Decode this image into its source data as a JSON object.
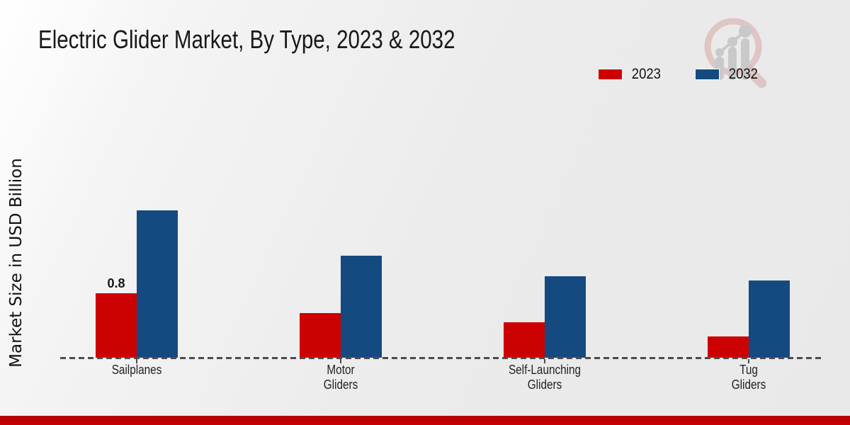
{
  "header": {
    "title": "Electric Glider Market, By Type, 2023 & 2032"
  },
  "icons": {
    "logo": "magnifier-growth-chart-icon"
  },
  "colors": {
    "series_2023": "#cc0202",
    "series_2032": "#154a80",
    "footer_band": "#c00000",
    "axis_dash": "#4c4c4c"
  },
  "chart_data": {
    "type": "bar",
    "title": "Electric Glider Market, By Type, 2023 & 2032",
    "xlabel": "",
    "ylabel": "Market Size in USD Billion",
    "categories": [
      "Sailplanes",
      "Motor Gliders",
      "Self-Launching Gliders",
      "Tug Gliders"
    ],
    "category_lines": [
      [
        "Sailplanes"
      ],
      [
        "Motor",
        "Gliders"
      ],
      [
        "Self-Launching",
        "Gliders"
      ],
      [
        "Tug",
        "Gliders"
      ]
    ],
    "series": [
      {
        "name": "2023",
        "color": "#cc0202",
        "values": [
          0.8,
          0.55,
          0.44,
          0.26
        ]
      },
      {
        "name": "2032",
        "color": "#154a80",
        "values": [
          1.83,
          1.27,
          1.01,
          0.96
        ]
      }
    ],
    "annotations": [
      {
        "series": "2023",
        "category": "Sailplanes",
        "text": "0.8"
      }
    ],
    "ylim": [
      0,
      2
    ],
    "grid": false,
    "axis_line_style": "dashed",
    "legend_position": "top-right"
  }
}
